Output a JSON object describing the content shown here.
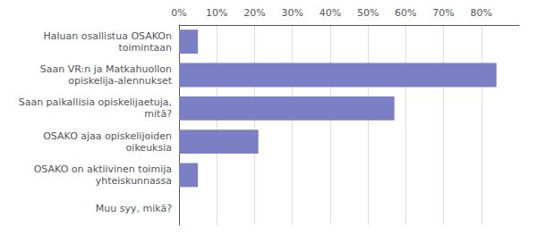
{
  "chart_data": {
    "type": "bar",
    "orientation": "horizontal",
    "categories": [
      "Muu syy, mikä?",
      "OSAKO on aktiivinen toimija\nyhteiskunnassa",
      "OSAKO ajaa opiskelijoiden\noikeuksia",
      "Saan paikallisia opiskelijaetuja,\nmitä?",
      "Saan VR:n ja Matkahuollon\nopiskelija-alennukset",
      "Haluan osallistua OSAKOn\ntoimintaan"
    ],
    "values": [
      0.0,
      5.0,
      21.0,
      57.0,
      84.0,
      5.0
    ],
    "color": "#7b7fc4",
    "xlim": [
      0,
      90
    ],
    "xticks": [
      {
        "value": 0,
        "label": "0%"
      },
      {
        "value": 10,
        "label": "10%"
      },
      {
        "value": 20,
        "label": "20%"
      },
      {
        "value": 30,
        "label": "30%"
      },
      {
        "value": 40,
        "label": "40%"
      },
      {
        "value": 50,
        "label": "50%"
      },
      {
        "value": 60,
        "label": "60%"
      },
      {
        "value": 70,
        "label": "70%"
      },
      {
        "value": 80,
        "label": "80%"
      }
    ],
    "grid": true
  }
}
